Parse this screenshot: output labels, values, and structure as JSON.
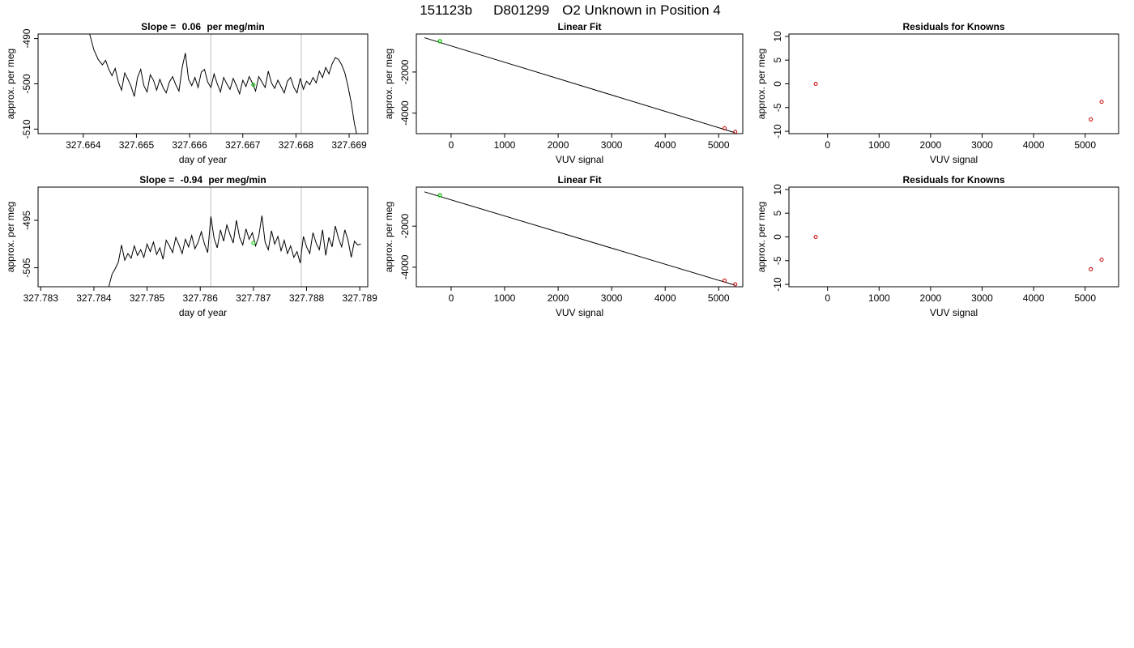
{
  "header": {
    "run_id": "151123b",
    "sample_id": "D801299",
    "description": "O2 Unknown in Position  4"
  },
  "chart_data": [
    {
      "type": "line",
      "title_prefix": "Slope = ",
      "title_value": "0.06",
      "title_unit": " per meg/min",
      "title": "Slope =  0.06  per meg/min",
      "xlabel": "day of year",
      "ylabel": "approx. per meg",
      "xlim": [
        327.66315,
        327.66935
      ],
      "ylim": [
        -511,
        -489
      ],
      "xticks": [
        327.664,
        327.665,
        327.666,
        327.667,
        327.668,
        327.669
      ],
      "xtick_labels": [
        "327.664",
        "327.665",
        "327.666",
        "327.667",
        "327.668",
        "327.669"
      ],
      "yticks": [
        -510,
        -500,
        -490
      ],
      "ytick_labels": [
        "-510",
        "-500",
        "-490"
      ],
      "vlines": [
        327.6664,
        327.6681
      ],
      "marker": {
        "x": 327.6672,
        "y": -500.2,
        "color": "#00cc00"
      },
      "series": [
        {
          "color": "#000000",
          "points": [
            [
              327.66412,
              -489
            ],
            [
              327.6642,
              -492.5
            ],
            [
              327.66428,
              -494.6
            ],
            [
              327.66436,
              -495.8
            ],
            [
              327.66442,
              -494.8
            ],
            [
              327.66448,
              -496.8
            ],
            [
              327.66454,
              -498.2
            ],
            [
              327.6646,
              -496.6
            ],
            [
              327.66466,
              -499.6
            ],
            [
              327.66472,
              -501.4
            ],
            [
              327.66478,
              -497.6
            ],
            [
              327.66484,
              -499.0
            ],
            [
              327.6649,
              -500.6
            ],
            [
              327.66496,
              -502.8
            ],
            [
              327.66502,
              -498.6
            ],
            [
              327.66508,
              -496.8
            ],
            [
              327.66514,
              -500.4
            ],
            [
              327.6652,
              -501.8
            ],
            [
              327.66526,
              -498.0
            ],
            [
              327.66532,
              -499.2
            ],
            [
              327.66538,
              -501.4
            ],
            [
              327.66544,
              -499.0
            ],
            [
              327.6655,
              -500.8
            ],
            [
              327.66556,
              -502.0
            ],
            [
              327.66562,
              -499.6
            ],
            [
              327.66568,
              -498.4
            ],
            [
              327.66574,
              -500.2
            ],
            [
              327.6658,
              -501.6
            ],
            [
              327.66586,
              -496.4
            ],
            [
              327.66592,
              -493.2
            ],
            [
              327.66598,
              -499.0
            ],
            [
              327.66604,
              -500.4
            ],
            [
              327.6661,
              -498.6
            ],
            [
              327.66616,
              -500.8
            ],
            [
              327.66622,
              -497.4
            ],
            [
              327.66628,
              -496.8
            ],
            [
              327.66634,
              -499.6
            ],
            [
              327.6664,
              -500.8
            ],
            [
              327.66646,
              -497.8
            ],
            [
              327.66652,
              -500.0
            ],
            [
              327.66658,
              -501.8
            ],
            [
              327.66664,
              -498.6
            ],
            [
              327.6667,
              -500.0
            ],
            [
              327.66676,
              -501.2
            ],
            [
              327.66682,
              -498.8
            ],
            [
              327.66688,
              -500.4
            ],
            [
              327.66694,
              -502.2
            ],
            [
              327.667,
              -499.2
            ],
            [
              327.66706,
              -500.6
            ],
            [
              327.66712,
              -498.4
            ],
            [
              327.66718,
              -499.8
            ],
            [
              327.66724,
              -501.6
            ],
            [
              327.6673,
              -498.4
            ],
            [
              327.66736,
              -499.6
            ],
            [
              327.66742,
              -500.8
            ],
            [
              327.66748,
              -497.2
            ],
            [
              327.66754,
              -499.8
            ],
            [
              327.6676,
              -501.0
            ],
            [
              327.66766,
              -499.2
            ],
            [
              327.66772,
              -500.6
            ],
            [
              327.66778,
              -502.0
            ],
            [
              327.66784,
              -499.4
            ],
            [
              327.6679,
              -498.6
            ],
            [
              327.66796,
              -500.8
            ],
            [
              327.66802,
              -502.0
            ],
            [
              327.66808,
              -498.8
            ],
            [
              327.66814,
              -501.2
            ],
            [
              327.6682,
              -499.4
            ],
            [
              327.66826,
              -500.2
            ],
            [
              327.66832,
              -498.6
            ],
            [
              327.66838,
              -499.8
            ],
            [
              327.66844,
              -497.2
            ],
            [
              327.6685,
              -498.6
            ],
            [
              327.66856,
              -496.4
            ],
            [
              327.66862,
              -497.8
            ],
            [
              327.66868,
              -495.6
            ],
            [
              327.66874,
              -494.2
            ],
            [
              327.6688,
              -494.6
            ],
            [
              327.66886,
              -495.8
            ],
            [
              327.66892,
              -497.6
            ],
            [
              327.66898,
              -500.6
            ],
            [
              327.66904,
              -504.2
            ],
            [
              327.6691,
              -508.8
            ],
            [
              327.66914,
              -511
            ]
          ]
        }
      ]
    },
    {
      "type": "line",
      "title": "Linear Fit",
      "xlabel": "VUV signal",
      "ylabel": "approx. per meg",
      "xlim": [
        -650,
        5450
      ],
      "ylim": [
        -5000,
        -150
      ],
      "xticks": [
        0,
        1000,
        2000,
        3000,
        4000,
        5000
      ],
      "xtick_labels": [
        "0",
        "1000",
        "2000",
        "3000",
        "4000",
        "5000"
      ],
      "yticks": [
        -4000,
        -2000
      ],
      "ytick_labels": [
        "-4000",
        "-2000"
      ],
      "fit_line": [
        [
          -500,
          -330
        ],
        [
          5300,
          -4950
        ]
      ],
      "unknown_point": {
        "x": -210,
        "y": -500,
        "color": "#00cc00"
      },
      "known_points": [
        [
          -210,
          -500
        ],
        [
          5110,
          -4740
        ],
        [
          5310,
          -4910
        ]
      ],
      "known_color": "#cc0000"
    },
    {
      "type": "scatter",
      "title": "Residuals for Knowns",
      "xlabel": "VUV signal",
      "ylabel": "approx. per meg",
      "xlim": [
        -750,
        5650
      ],
      "ylim": [
        -10.5,
        10.5
      ],
      "xticks": [
        0,
        1000,
        2000,
        3000,
        4000,
        5000
      ],
      "xtick_labels": [
        "0",
        "1000",
        "2000",
        "3000",
        "4000",
        "5000"
      ],
      "yticks": [
        -10,
        -5,
        0,
        5,
        10
      ],
      "ytick_labels": [
        "-10",
        "-5",
        "0",
        "5",
        "10"
      ],
      "points": [
        [
          -230,
          0
        ],
        [
          5110,
          -7.5
        ],
        [
          5320,
          -3.8
        ]
      ],
      "color": "#cc0000"
    },
    {
      "type": "line",
      "title_prefix": "Slope = ",
      "title_value": "-0.94",
      "title_unit": " per meg/min",
      "title": "Slope =  -0.94  per meg/min",
      "xlabel": "day of year",
      "ylabel": "approx. per meg",
      "xlim": [
        327.78295,
        327.78915
      ],
      "ylim": [
        -509,
        -488
      ],
      "xticks": [
        327.783,
        327.784,
        327.785,
        327.786,
        327.787,
        327.788,
        327.789
      ],
      "xtick_labels": [
        "327.783",
        "327.784",
        "327.785",
        "327.786",
        "327.787",
        "327.788",
        "327.789"
      ],
      "yticks": [
        -505,
        -495
      ],
      "ytick_labels": [
        "-505",
        "-495"
      ],
      "vlines": [
        327.7862,
        327.7879
      ],
      "marker": {
        "x": 327.787,
        "y": -499.8,
        "color": "#00cc00"
      },
      "series": [
        {
          "color": "#000000",
          "points": [
            [
              327.78428,
              -509
            ],
            [
              327.78434,
              -506.4
            ],
            [
              327.7844,
              -505.2
            ],
            [
              327.78446,
              -503.8
            ],
            [
              327.78452,
              -500.2
            ],
            [
              327.78458,
              -503.4
            ],
            [
              327.78464,
              -502.0
            ],
            [
              327.7847,
              -503.0
            ],
            [
              327.78476,
              -500.4
            ],
            [
              327.78482,
              -502.4
            ],
            [
              327.78488,
              -501.2
            ],
            [
              327.78494,
              -502.8
            ],
            [
              327.785,
              -500.0
            ],
            [
              327.78506,
              -501.6
            ],
            [
              327.78512,
              -499.6
            ],
            [
              327.78518,
              -502.2
            ],
            [
              327.78524,
              -500.8
            ],
            [
              327.7853,
              -503.2
            ],
            [
              327.78536,
              -499.2
            ],
            [
              327.78542,
              -500.4
            ],
            [
              327.78548,
              -501.8
            ],
            [
              327.78554,
              -498.6
            ],
            [
              327.7856,
              -500.2
            ],
            [
              327.78566,
              -502.0
            ],
            [
              327.78572,
              -499.0
            ],
            [
              327.78578,
              -500.6
            ],
            [
              327.78584,
              -498.2
            ],
            [
              327.7859,
              -501.0
            ],
            [
              327.78596,
              -499.6
            ],
            [
              327.78602,
              -497.4
            ],
            [
              327.78608,
              -500.0
            ],
            [
              327.78614,
              -501.8
            ],
            [
              327.7862,
              -494.2
            ],
            [
              327.78626,
              -498.8
            ],
            [
              327.78632,
              -500.8
            ],
            [
              327.78638,
              -497.0
            ],
            [
              327.78644,
              -499.4
            ],
            [
              327.7865,
              -496.0
            ],
            [
              327.78656,
              -498.0
            ],
            [
              327.78662,
              -499.8
            ],
            [
              327.78668,
              -495.0
            ],
            [
              327.78674,
              -498.6
            ],
            [
              327.7868,
              -500.2
            ],
            [
              327.78686,
              -496.8
            ],
            [
              327.78692,
              -499.0
            ],
            [
              327.78698,
              -497.6
            ],
            [
              327.78704,
              -500.4
            ],
            [
              327.7871,
              -498.4
            ],
            [
              327.78716,
              -494.0
            ],
            [
              327.78722,
              -499.6
            ],
            [
              327.78728,
              -501.2
            ],
            [
              327.78734,
              -497.2
            ],
            [
              327.7874,
              -500.0
            ],
            [
              327.78746,
              -498.4
            ],
            [
              327.78752,
              -501.4
            ],
            [
              327.78758,
              -499.2
            ],
            [
              327.78764,
              -502.0
            ],
            [
              327.7877,
              -500.4
            ],
            [
              327.78776,
              -502.8
            ],
            [
              327.78782,
              -501.6
            ],
            [
              327.78788,
              -504.0
            ],
            [
              327.78794,
              -498.4
            ],
            [
              327.788,
              -500.6
            ],
            [
              327.78806,
              -502.0
            ],
            [
              327.78812,
              -497.6
            ],
            [
              327.78818,
              -499.8
            ],
            [
              327.78824,
              -501.2
            ],
            [
              327.7883,
              -497.0
            ],
            [
              327.78836,
              -502.4
            ],
            [
              327.78842,
              -498.6
            ],
            [
              327.78848,
              -500.6
            ],
            [
              327.78854,
              -496.2
            ],
            [
              327.7886,
              -498.8
            ],
            [
              327.78866,
              -500.6
            ],
            [
              327.78872,
              -497.0
            ],
            [
              327.78878,
              -499.2
            ],
            [
              327.78884,
              -502.8
            ],
            [
              327.7889,
              -499.4
            ],
            [
              327.78896,
              -500.2
            ],
            [
              327.78902,
              -500.0
            ]
          ]
        }
      ]
    },
    {
      "type": "line",
      "title": "Linear Fit",
      "xlabel": "VUV signal",
      "ylabel": "approx. per meg",
      "xlim": [
        -650,
        5450
      ],
      "ylim": [
        -4950,
        -100
      ],
      "xticks": [
        0,
        1000,
        2000,
        3000,
        4000,
        5000
      ],
      "xtick_labels": [
        "0",
        "1000",
        "2000",
        "3000",
        "4000",
        "5000"
      ],
      "yticks": [
        -4000,
        -2000
      ],
      "ytick_labels": [
        "-4000",
        "-2000"
      ],
      "fit_line": [
        [
          -500,
          -330
        ],
        [
          5300,
          -4870
        ]
      ],
      "unknown_point": {
        "x": -210,
        "y": -500,
        "color": "#00cc00"
      },
      "known_points": [
        [
          -210,
          -500
        ],
        [
          5110,
          -4650
        ],
        [
          5310,
          -4830
        ]
      ],
      "known_color": "#cc0000"
    },
    {
      "type": "scatter",
      "title": "Residuals for Knowns",
      "xlabel": "VUV signal",
      "ylabel": "approx. per meg",
      "xlim": [
        -750,
        5650
      ],
      "ylim": [
        -10.5,
        10.5
      ],
      "xticks": [
        0,
        1000,
        2000,
        3000,
        4000,
        5000
      ],
      "xtick_labels": [
        "0",
        "1000",
        "2000",
        "3000",
        "4000",
        "5000"
      ],
      "yticks": [
        -10,
        -5,
        0,
        5,
        10
      ],
      "ytick_labels": [
        "-10",
        "-5",
        "0",
        "5",
        "10"
      ],
      "points": [
        [
          -230,
          0
        ],
        [
          5110,
          -6.8
        ],
        [
          5320,
          -4.8
        ]
      ],
      "color": "#cc0000"
    }
  ]
}
